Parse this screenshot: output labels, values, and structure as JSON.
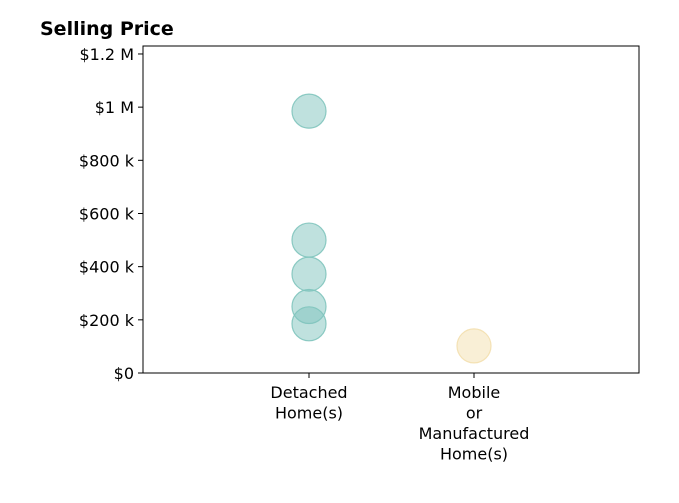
{
  "chart_data": {
    "type": "scatter",
    "title": "Selling Price",
    "xlabel": "",
    "ylabel": "",
    "categories": [
      "Detached Home(s)",
      "Mobile or Manufactured Home(s)"
    ],
    "category_label_lines": [
      [
        "Detached",
        "Home(s)"
      ],
      [
        "Mobile",
        "or",
        "Manufactured",
        "Home(s)"
      ]
    ],
    "ylim": [
      0,
      1230000
    ],
    "yticks": [
      0,
      200000,
      400000,
      600000,
      800000,
      1000000,
      1200000
    ],
    "ytick_labels": [
      "$0",
      "$200 k",
      "$400 k",
      "$600 k",
      "$800 k",
      "$1 M",
      "$1.2 M"
    ],
    "grid": false,
    "series": [
      {
        "category": "Detached Home(s)",
        "color": "#7fc4bd",
        "values": [
          985000,
          500000,
          372000,
          250000,
          185000
        ]
      },
      {
        "category": "Mobile or Manufactured Home(s)",
        "color": "#f3dfae",
        "values": [
          102000
        ]
      }
    ]
  }
}
